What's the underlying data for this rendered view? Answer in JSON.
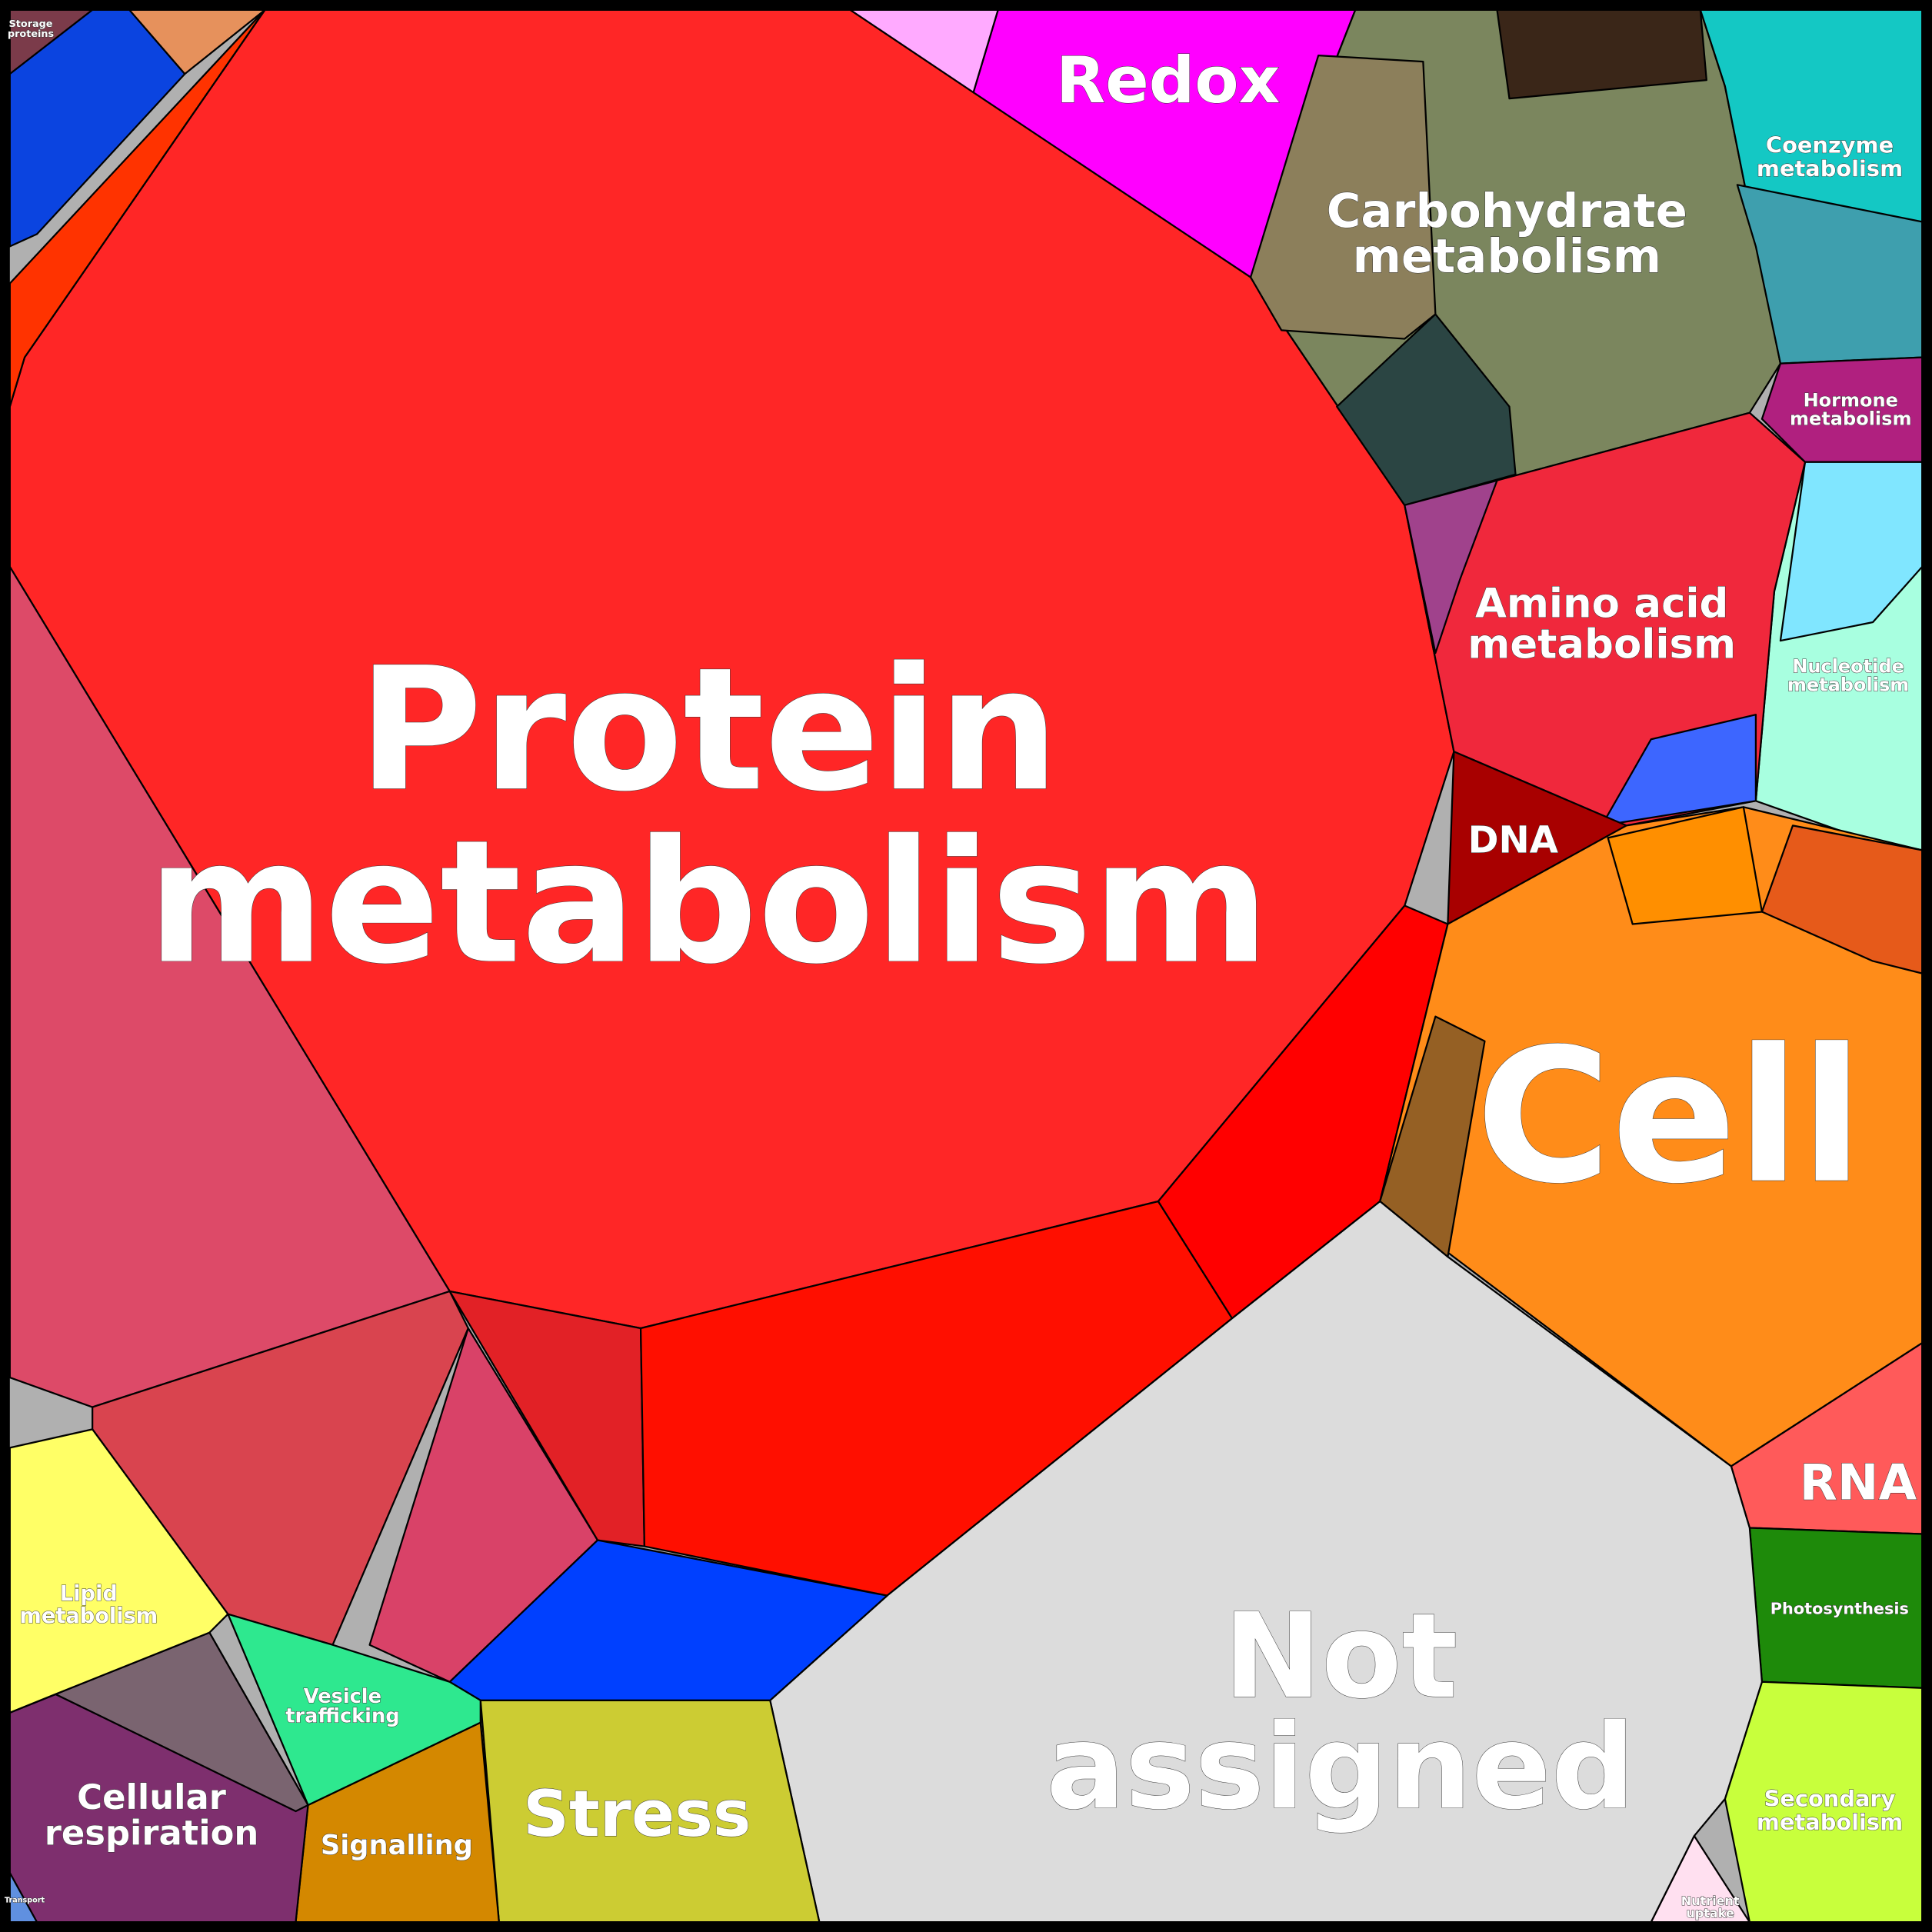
{
  "regions": [
    {
      "lines": [
        "Protein",
        "metabolism"
      ]
    },
    {
      "lines": [
        "Redox"
      ]
    },
    {
      "lines": [
        "Carbohydrate",
        "metabolism"
      ]
    },
    {
      "lines": [
        "Coenzyme",
        "metabolism"
      ]
    },
    {
      "lines": [
        "Hormone",
        "metabolism"
      ]
    },
    {
      "lines": [
        "Nucleotide",
        "metabolism"
      ]
    },
    {
      "lines": [
        "Amino acid",
        "metabolism"
      ]
    },
    {
      "lines": [
        "DNA"
      ]
    },
    {
      "lines": [
        "Cell"
      ]
    },
    {
      "lines": [
        "RNA"
      ]
    },
    {
      "lines": [
        "Photosynthesis"
      ]
    },
    {
      "lines": [
        "Not",
        "assigned"
      ]
    },
    {
      "lines": [
        "Secondary",
        "metabolism"
      ]
    },
    {
      "lines": [
        "Nutrient",
        "uptake"
      ]
    },
    {
      "lines": [
        "Stress"
      ]
    },
    {
      "lines": [
        "Signalling"
      ]
    },
    {
      "lines": [
        "Vesicle",
        "trafficking"
      ]
    },
    {
      "lines": [
        "Cellular",
        "respiration"
      ]
    },
    {
      "lines": [
        "Lipid",
        "metabolism"
      ]
    },
    {
      "lines": [
        "Storage",
        "proteins"
      ]
    },
    {
      "lines": [
        "Transport"
      ]
    }
  ]
}
